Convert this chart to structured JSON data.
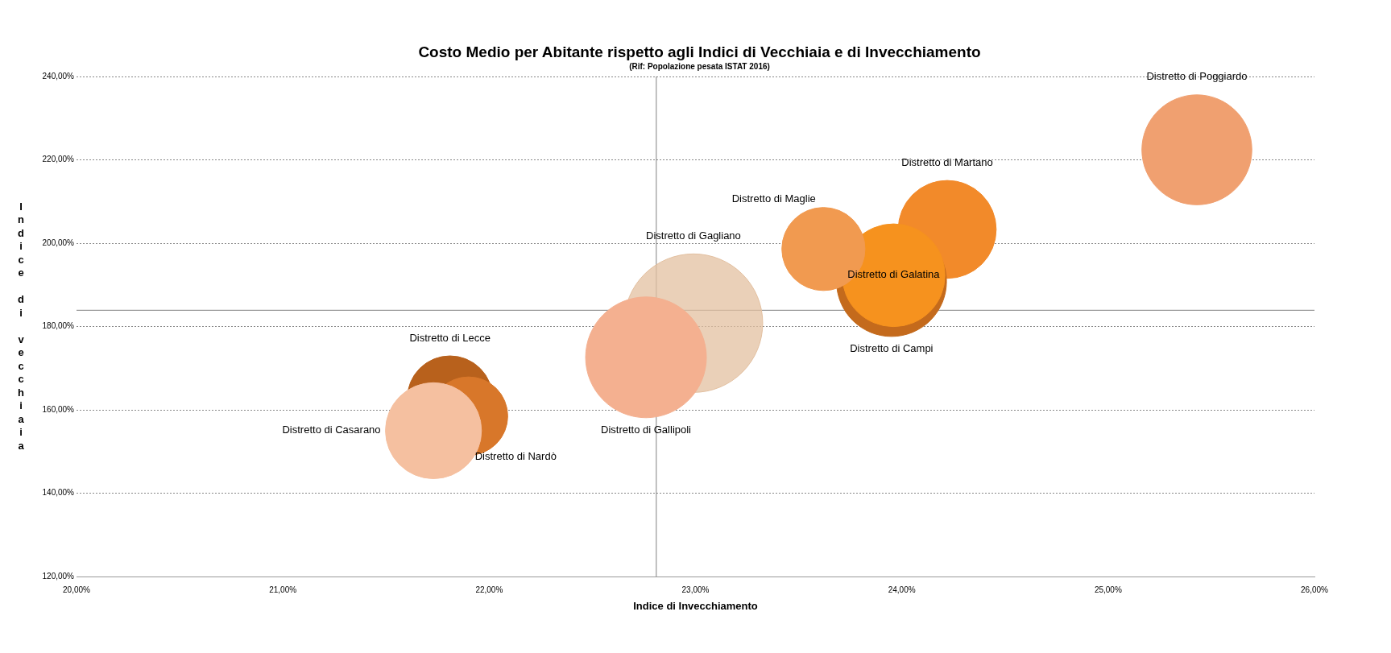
{
  "chart_data": {
    "type": "bubble",
    "title": "Costo Medio per Abitante rispetto agli Indici di Vecchiaia e di Invecchiamento",
    "subtitle": "(Rif: Popolazione pesata ISTAT 2016)",
    "xlabel": "Indice di Invecchiamento",
    "ylabel": "Indice di vecchiaia",
    "series": [
      {
        "name": "Distretto di Casarano",
        "color": "#f5c0a0",
        "x": [
          21.73
        ],
        "values": [
          155.0
        ],
        "sizes": [
          0.48
        ]
      },
      {
        "name": "Distretto di Nardò",
        "color": "#d8772a",
        "x": [
          21.9
        ],
        "values": [
          158.5
        ],
        "sizes": [
          0.32
        ]
      },
      {
        "name": "Distretto di Lecce",
        "color": "#b8611c",
        "x": [
          21.81
        ],
        "values": [
          162.7
        ],
        "sizes": [
          0.38
        ]
      },
      {
        "name": "Distretto di Gallipoli",
        "color": "#f4b090",
        "x": [
          22.76
        ],
        "values": [
          172.6
        ],
        "sizes": [
          0.76
        ]
      },
      {
        "name": "Distretto di Gagliano",
        "color": "#e3c0a0",
        "x": [
          22.99
        ],
        "values": [
          180.8
        ],
        "sizes": [
          1
        ]
      },
      {
        "name": "Distretto di Maglie",
        "color": "#f19a50",
        "x": [
          23.62
        ],
        "values": [
          198.6
        ],
        "sizes": [
          0.36
        ]
      },
      {
        "name": "Distretto di Galatina",
        "color": "#f6921e",
        "x": [
          23.96
        ],
        "values": [
          192.3
        ],
        "sizes": [
          0.55
        ]
      },
      {
        "name": "Distretto di Campi",
        "color": "#c46a1c",
        "x": [
          23.95
        ],
        "values": [
          190.8
        ],
        "sizes": [
          0.63
        ]
      },
      {
        "name": "Distretto di Martano",
        "color": "#f28a2a",
        "x": [
          24.22
        ],
        "values": [
          203.3
        ],
        "sizes": [
          0.5
        ]
      },
      {
        "name": "Distretto di Poggiardo",
        "color": "#f0a070",
        "x": [
          25.43
        ],
        "values": [
          222.4
        ],
        "sizes": [
          0.63
        ]
      }
    ],
    "xlim": [
      20,
      26
    ],
    "ylim": [
      120,
      240
    ],
    "xticks": [
      {
        "value": 20,
        "label": "20,00%"
      },
      {
        "value": 21,
        "label": "21,00%"
      },
      {
        "value": 22,
        "label": "22,00%"
      },
      {
        "value": 23,
        "label": "23,00%"
      },
      {
        "value": 24,
        "label": "24,00%"
      },
      {
        "value": 25,
        "label": "25,00%"
      },
      {
        "value": 26,
        "label": "26,00%"
      }
    ],
    "yticks": [
      {
        "value": 120,
        "label": "120,00%"
      },
      {
        "value": 140,
        "label": "140,00%"
      },
      {
        "value": 160,
        "label": "160,00%"
      },
      {
        "value": 180,
        "label": "180,00%"
      },
      {
        "value": 200,
        "label": "200,00%"
      },
      {
        "value": 220,
        "label": "220,00%"
      },
      {
        "value": 240,
        "label": "240,00%"
      }
    ],
    "ref_lines": [
      {
        "axis": "x",
        "value": 22.81,
        "color": "#808080"
      },
      {
        "axis": "y",
        "value": 183.9,
        "color": "#808080"
      }
    ],
    "grid": "y",
    "legend": false
  }
}
